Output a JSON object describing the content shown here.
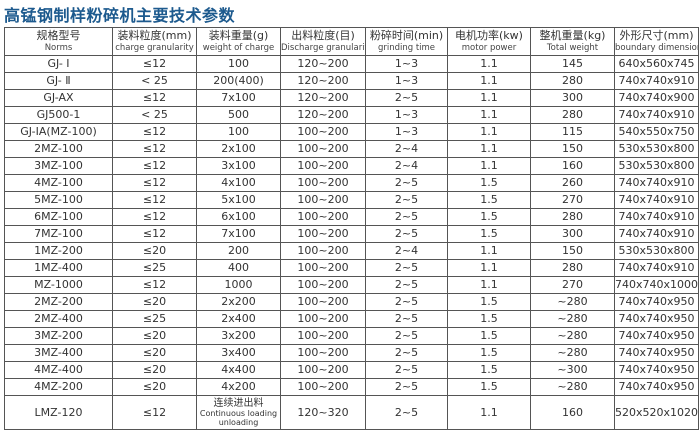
{
  "title": "高锰钢制样粉碎机主要技术参数",
  "headers": [
    {
      "cn": "规格型号",
      "en": "Norms"
    },
    {
      "cn": "装料粒度(mm)",
      "en": "charge granularity"
    },
    {
      "cn": "装料重量(g)",
      "en": "weight of charge"
    },
    {
      "cn": "出料粒度(目)",
      "en": "Discharge granularity"
    },
    {
      "cn": "粉碎时间(min)",
      "en": "grinding time"
    },
    {
      "cn": "电机功率(kw)",
      "en": "motor power"
    },
    {
      "cn": "整机重量(kg)",
      "en": "Total weight"
    },
    {
      "cn": "外形尺寸(mm)",
      "en": "boundary dimension"
    }
  ],
  "rows": [
    [
      "GJ- Ⅰ",
      "≤12",
      "100",
      "120~200",
      "1~3",
      "1.1",
      "145",
      "640x560x745"
    ],
    [
      "GJ- Ⅱ",
      "< 25",
      "200(400)",
      "120~200",
      "1~3",
      "1.1",
      "280",
      "740x740x910"
    ],
    [
      "GJ-AX",
      "≤12",
      "7x100",
      "120~200",
      "2~5",
      "1.1",
      "300",
      "740x740x900"
    ],
    [
      "GJ500-1",
      "< 25",
      "500",
      "120~200",
      "1~3",
      "1.1",
      "280",
      "740x740x910"
    ],
    [
      "GJ-IA(MZ-100)",
      "≤12",
      "100",
      "100~200",
      "1~3",
      "1.1",
      "115",
      "540x550x750"
    ],
    [
      "2MZ-100",
      "≤12",
      "2x100",
      "100~200",
      "2~4",
      "1.1",
      "150",
      "530x530x800"
    ],
    [
      "3MZ-100",
      "≤12",
      "3x100",
      "100~200",
      "2~4",
      "1.1",
      "160",
      "530x530x800"
    ],
    [
      "4MZ-100",
      "≤12",
      "4x100",
      "100~200",
      "2~5",
      "1.5",
      "260",
      "740x740x910"
    ],
    [
      "5MZ-100",
      "≤12",
      "5x100",
      "100~200",
      "2~5",
      "1.5",
      "270",
      "740x740x910"
    ],
    [
      "6MZ-100",
      "≤12",
      "6x100",
      "100~200",
      "2~5",
      "1.5",
      "280",
      "740x740x910"
    ],
    [
      "7MZ-100",
      "≤12",
      "7x100",
      "100~200",
      "2~5",
      "1.5",
      "300",
      "740x740x910"
    ],
    [
      "1MZ-200",
      "≤20",
      "200",
      "100~200",
      "2~4",
      "1.1",
      "150",
      "530x530x800"
    ],
    [
      "1MZ-400",
      "≤25",
      "400",
      "100~200",
      "2~5",
      "1.1",
      "280",
      "740x740x910"
    ],
    [
      "MZ-1000",
      "≤12",
      "1000",
      "100~200",
      "2~5",
      "1.1",
      "270",
      "740x740x1000"
    ],
    [
      "2MZ-200",
      "≤20",
      "2x200",
      "100~200",
      "2~5",
      "1.5",
      "~280",
      "740x740x950"
    ],
    [
      "2MZ-400",
      "≤25",
      "2x400",
      "100~200",
      "2~5",
      "1.5",
      "~280",
      "740x740x950"
    ],
    [
      "3MZ-200",
      "≤20",
      "3x200",
      "100~200",
      "2~5",
      "1.5",
      "~280",
      "740x740x950"
    ],
    [
      "3MZ-400",
      "≤20",
      "3x400",
      "100~200",
      "2~5",
      "1.5",
      "~280",
      "740x740x950"
    ],
    [
      "4MZ-400",
      "≤20",
      "4x400",
      "100~200",
      "2~5",
      "1.5",
      "~300",
      "740x740x950"
    ],
    [
      "4MZ-200",
      "≤20",
      "4x200",
      "100~200",
      "2~5",
      "1.5",
      "~280",
      "740x740x950"
    ]
  ],
  "last_row": {
    "model": "LMZ-120",
    "granularity": "≤12",
    "weight_cn": "连续进出料",
    "weight_en1": "Continuous loading",
    "weight_en2": "unloading",
    "discharge": "120~320",
    "time": "2~5",
    "power": "1.1",
    "total": "160",
    "dimension": "520x520x1020"
  }
}
